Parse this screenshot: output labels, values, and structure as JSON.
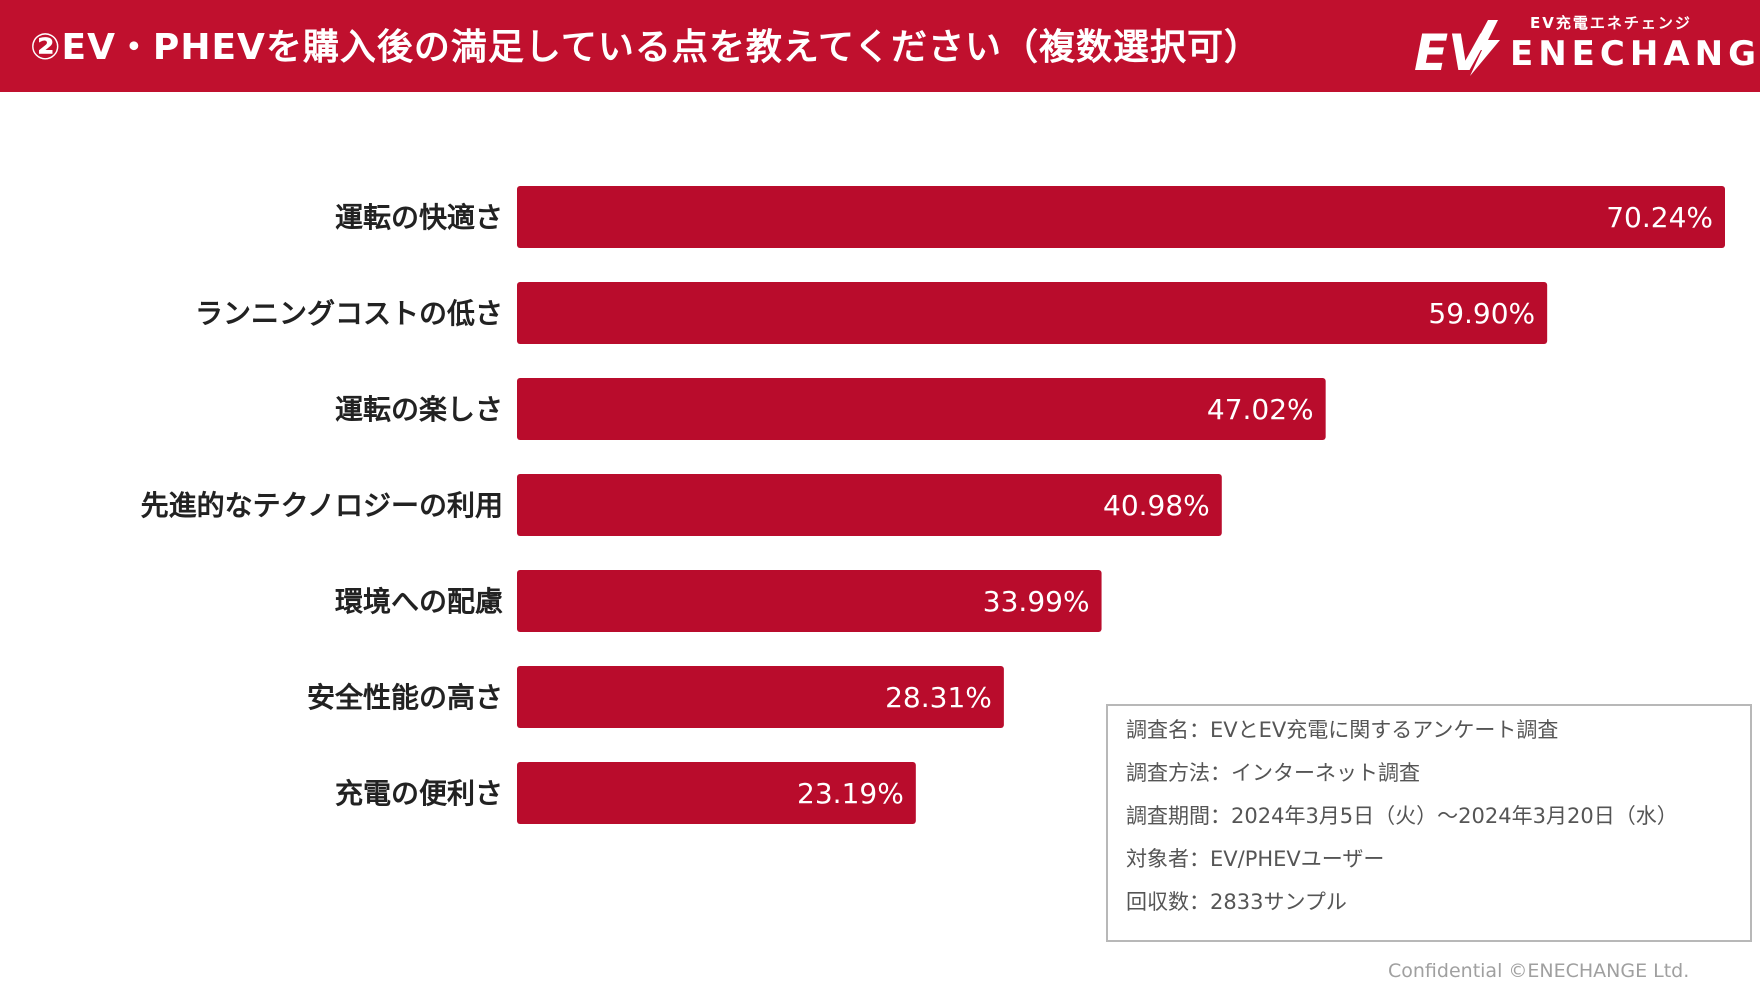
{
  "header": {
    "title": "②EV・PHEVを購入後の満足している点を教えてください（複数選択可）",
    "brand_color": "#c0102e"
  },
  "logo": {
    "mark": "EV",
    "subtitle": "EV充電エネチェンジ",
    "name": "ENECHANGE"
  },
  "chart_data": {
    "type": "bar",
    "orientation": "horizontal",
    "categories": [
      "運転の快適さ",
      "ランニングコストの低さ",
      "運転の楽しさ",
      "先進的なテクノロジーの利用",
      "環境への配慮",
      "安全性能の高さ",
      "充電の便利さ"
    ],
    "values": [
      70.24,
      59.9,
      47.02,
      40.98,
      33.99,
      28.31,
      23.19
    ],
    "value_labels": [
      "70.24%",
      "59.90%",
      "47.02%",
      "40.98%",
      "33.99%",
      "28.31%",
      "23.19%"
    ],
    "unit": "%",
    "xlim": [
      0,
      70.24
    ],
    "bar_color": "#b90c2c",
    "label_color": "#ffffff",
    "grid": false
  },
  "survey": {
    "lines": [
      "調査名：EVとEV充電に関するアンケート調査",
      "調査方法：インターネット調査",
      "調査期間：2024年3月5日（火）〜2024年3月20日（水）",
      "対象者：EV/PHEVユーザー",
      "回収数：2833サンプル"
    ]
  },
  "footer": {
    "text": "Confidential ©ENECHANGE Ltd."
  }
}
